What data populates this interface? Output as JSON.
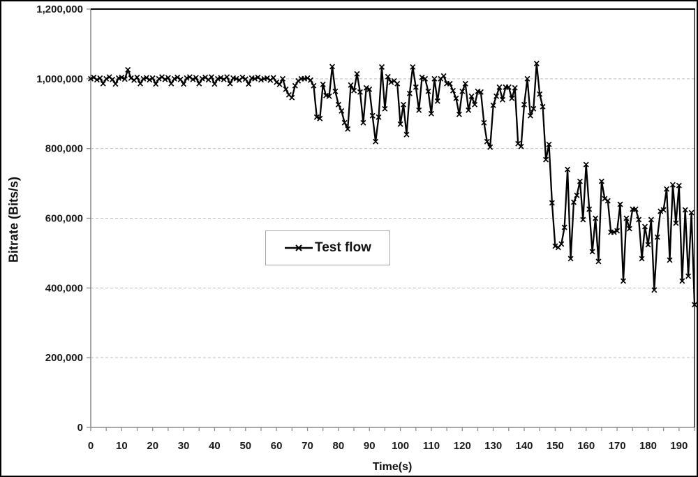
{
  "colors": {
    "line": "#000000",
    "gridline": "#bfbfbf",
    "axis": "#8c8c8c",
    "plot_border": "#000000",
    "legend_border": "#a6a6a6",
    "text": "#1a1a1a",
    "background": "#ffffff"
  },
  "chart_data": {
    "type": "line",
    "title": "",
    "xlabel": "Time(s)",
    "ylabel": "Bitrate (Bits/s)",
    "xlim": [
      0,
      195
    ],
    "ylim": [
      0,
      1200000
    ],
    "grid": "horizontal dashed gridlines at every 200,000",
    "x_start": 0,
    "x_step": 1,
    "x_minor_tick_step": 5,
    "x_major_tick_step": 10,
    "x_tick_labels": [
      "0",
      "10",
      "20",
      "30",
      "40",
      "50",
      "60",
      "70",
      "80",
      "90",
      "100",
      "110",
      "120",
      "130",
      "140",
      "150",
      "160",
      "170",
      "180",
      "190"
    ],
    "y_ticks": [
      0,
      200000,
      400000,
      600000,
      800000,
      1000000,
      1200000
    ],
    "y_tick_labels": [
      "0",
      "200,000",
      "400,000",
      "600,000",
      "800,000",
      "1,000,000",
      "1,200,000"
    ],
    "legend": {
      "label": "Test flow",
      "position": "inside-left-center",
      "marker": "x-on-line"
    },
    "series": [
      {
        "name": "Test flow",
        "color": "#000000",
        "marker": "x",
        "values": [
          1000000,
          1004000,
          997000,
          1002000,
          986000,
          1000000,
          1005000,
          998000,
          985000,
          1002000,
          1004000,
          999000,
          1026000,
          1002000,
          996000,
          1004000,
          986000,
          1000000,
          1003000,
          997000,
          1002000,
          985000,
          1000000,
          1005000,
          998000,
          1003000,
          986000,
          1000000,
          1004000,
          998000,
          985000,
          1002000,
          1005000,
          998000,
          1003000,
          986000,
          1000000,
          1004000,
          997000,
          1005000,
          985000,
          1000000,
          1003000,
          998000,
          1005000,
          986000,
          1002000,
          1000000,
          996000,
          1004000,
          999000,
          985000,
          1002000,
          1000000,
          1004000,
          997000,
          1000000,
          1002000,
          996000,
          1003000,
          990000,
          984000,
          1000000,
          970000,
          954000,
          946000,
          980000,
          994000,
          1000000,
          1000000,
          1002000,
          996000,
          980000,
          890000,
          886000,
          984000,
          952000,
          950000,
          1035000,
          964000,
          926000,
          908000,
          874000,
          856000,
          982000,
          966000,
          1014000,
          962000,
          874000,
          974000,
          970000,
          894000,
          820000,
          890000,
          1034000,
          914000,
          1006000,
          990000,
          994000,
          986000,
          870000,
          926000,
          840000,
          958000,
          1034000,
          976000,
          910000,
          1004000,
          1000000,
          964000,
          900000,
          1000000,
          936000,
          1000000,
          1008000,
          986000,
          986000,
          966000,
          944000,
          898000,
          964000,
          986000,
          910000,
          950000,
          926000,
          964000,
          962000,
          874000,
          820000,
          804000,
          924000,
          950000,
          976000,
          940000,
          976000,
          976000,
          944000,
          974000,
          814000,
          806000,
          926000,
          1000000,
          894000,
          914000,
          1044000,
          956000,
          920000,
          768000,
          812000,
          644000,
          520000,
          516000,
          526000,
          574000,
          740000,
          484000,
          646000,
          666000,
          706000,
          596000,
          754000,
          626000,
          504000,
          600000,
          476000,
          706000,
          656000,
          650000,
          560000,
          560000,
          564000,
          640000,
          420000,
          600000,
          570000,
          626000,
          626000,
          596000,
          484000,
          576000,
          524000,
          596000,
          394000,
          546000,
          620000,
          624000,
          684000,
          480000,
          696000,
          586000,
          694000,
          420000,
          624000,
          434000,
          616000,
          352000
        ]
      }
    ]
  }
}
